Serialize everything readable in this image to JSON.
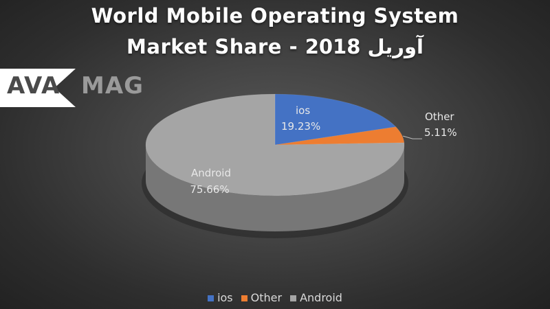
{
  "title_line1": "World Mobile Operating System",
  "title_line2": "Market Share - آوریل 2018",
  "logo": {
    "left": "AVA",
    "right": "MAG"
  },
  "colors": {
    "ios": "#4472c4",
    "other": "#ed7d31",
    "android": "#a5a5a5",
    "label_text": "#e8e8e8",
    "legend_text": "#d9d9d9"
  },
  "chart_data": {
    "type": "pie",
    "style": "3d",
    "title": "World Mobile Operating System Market Share - آوریل 2018",
    "legend_position": "bottom",
    "slices": [
      {
        "key": "ios",
        "name": "ios",
        "value": 19.23,
        "label": "19.23%"
      },
      {
        "key": "other",
        "name": "Other",
        "value": 5.11,
        "label": "5.11%"
      },
      {
        "key": "android",
        "name": "Android",
        "value": 75.66,
        "label": "75.66%"
      }
    ]
  }
}
